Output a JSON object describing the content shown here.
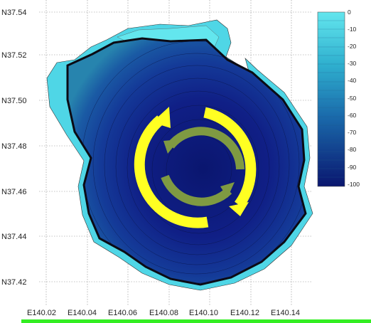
{
  "map": {
    "latitude_labels": [
      "N37.54",
      "N37.52",
      "N37.50",
      "N37.48",
      "N37.46",
      "N37.44",
      "N37.42"
    ],
    "longitude_labels": [
      "E140.02",
      "E140.04",
      "E140.06",
      "E140.08",
      "E140.10",
      "E140.12",
      "E140.14"
    ],
    "depth_scale_labels": [
      "0",
      "-10",
      "-20",
      "-30",
      "-40",
      "-50",
      "-60",
      "-70",
      "-80",
      "-90",
      "-100"
    ],
    "depth_colors": {
      "shallow": "#63e6ee",
      "deep": "#0a166f"
    },
    "circulation": {
      "outer_ring": {
        "direction": "clockwise",
        "color": "#ffff22"
      },
      "inner_ring": {
        "direction": "counter-clockwise",
        "color": "#7f9a42"
      }
    },
    "bottom_bar_color": "#33ee22"
  }
}
